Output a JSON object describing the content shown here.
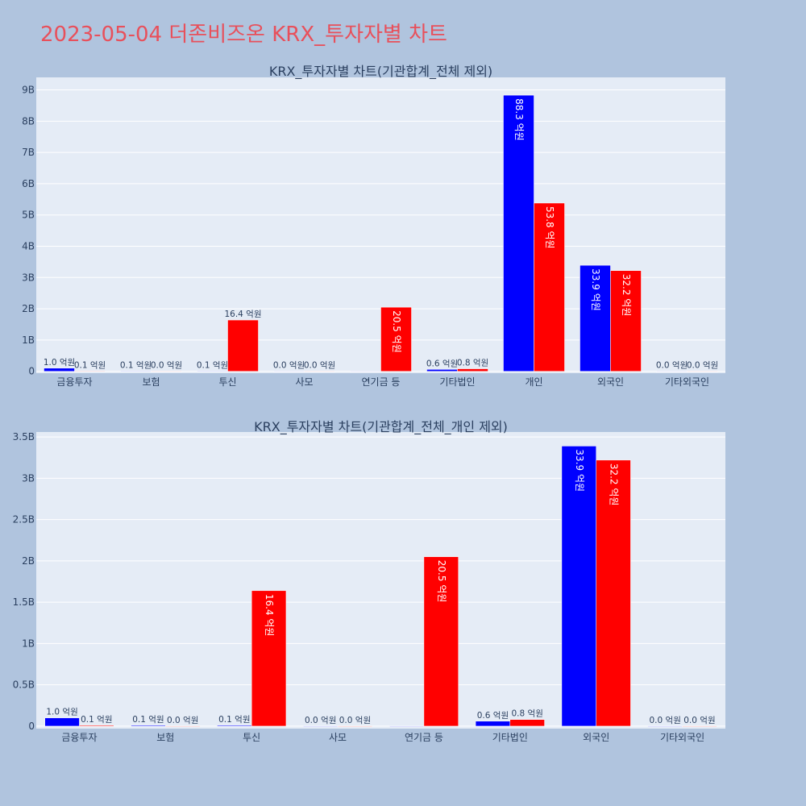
{
  "page": {
    "title": "2023-05-04 더존비즈온 KRX_투자자별 차트"
  },
  "colors": {
    "series1": "#0000ff",
    "series2": "#ff0000",
    "plot_bg": "#e5ecf6",
    "page_bg": "#b0c4de",
    "title": "#e8505b"
  },
  "chart_data": [
    {
      "type": "bar",
      "title": "KRX_투자자별 차트(기관합계_전체 제외)",
      "xlabel": "",
      "ylabel": "",
      "categories": [
        "금융투자",
        "보험",
        "투신",
        "사모",
        "연기금 등",
        "기타법인",
        "개인",
        "외국인",
        "기타외국인"
      ],
      "series": [
        {
          "color": "#0000ff",
          "values": [
            100000000,
            10000000,
            10000000,
            0,
            0,
            60000000,
            8830000000,
            3390000000,
            0
          ],
          "labels": [
            "1.0 억원",
            "0.1 억원",
            "0.1 억원",
            "0.0 억원",
            "",
            "0.6 억원",
            "88.3 억원",
            "33.9 억원",
            "0.0 억원"
          ]
        },
        {
          "color": "#ff0000",
          "values": [
            10000000,
            0,
            1640000000,
            0,
            2050000000,
            80000000,
            5380000000,
            3220000000,
            0
          ],
          "labels": [
            "0.1 억원",
            "0.0 억원",
            "16.4 억원",
            "0.0 억원",
            "20.5 억원",
            "0.8 억원",
            "53.8 억원",
            "32.2 억원",
            "0.0 억원"
          ]
        }
      ],
      "yticks": [
        {
          "v": 0,
          "label": "0"
        },
        {
          "v": 1000000000,
          "label": "1B"
        },
        {
          "v": 2000000000,
          "label": "2B"
        },
        {
          "v": 3000000000,
          "label": "3B"
        },
        {
          "v": 4000000000,
          "label": "4B"
        },
        {
          "v": 5000000000,
          "label": "5B"
        },
        {
          "v": 6000000000,
          "label": "6B"
        },
        {
          "v": 7000000000,
          "label": "7B"
        },
        {
          "v": 8000000000,
          "label": "8B"
        },
        {
          "v": 9000000000,
          "label": "9B"
        }
      ],
      "ylim": [
        -60000000,
        9400000000
      ],
      "grid": true,
      "legend": "none"
    },
    {
      "type": "bar",
      "title": "KRX_투자자별 차트(기관합계_전체_개인 제외)",
      "xlabel": "",
      "ylabel": "",
      "categories": [
        "금융투자",
        "보험",
        "투신",
        "사모",
        "연기금 등",
        "기타법인",
        "외국인",
        "기타외국인"
      ],
      "series": [
        {
          "color": "#0000ff",
          "values": [
            100000000,
            10000000,
            10000000,
            0,
            0,
            60000000,
            3390000000,
            0
          ],
          "labels": [
            "1.0 억원",
            "0.1 억원",
            "0.1 억원",
            "0.0 억원",
            "",
            "0.6 억원",
            "33.9 억원",
            "0.0 억원"
          ]
        },
        {
          "color": "#ff0000",
          "values": [
            10000000,
            0,
            1640000000,
            0,
            2050000000,
            80000000,
            3220000000,
            0
          ],
          "labels": [
            "0.1 억원",
            "0.0 억원",
            "16.4 억원",
            "0.0 억원",
            "20.5 억원",
            "0.8 억원",
            "32.2 억원",
            "0.0 억원"
          ]
        }
      ],
      "yticks": [
        {
          "v": 0,
          "label": "0"
        },
        {
          "v": 500000000,
          "label": "0.5B"
        },
        {
          "v": 1000000000,
          "label": "1B"
        },
        {
          "v": 1500000000,
          "label": "1.5B"
        },
        {
          "v": 2000000000,
          "label": "2B"
        },
        {
          "v": 2500000000,
          "label": "2.5B"
        },
        {
          "v": 3000000000,
          "label": "3B"
        },
        {
          "v": 3500000000,
          "label": "3.5B"
        }
      ],
      "ylim": [
        -30000000,
        3560000000
      ],
      "grid": true,
      "legend": "none"
    }
  ]
}
